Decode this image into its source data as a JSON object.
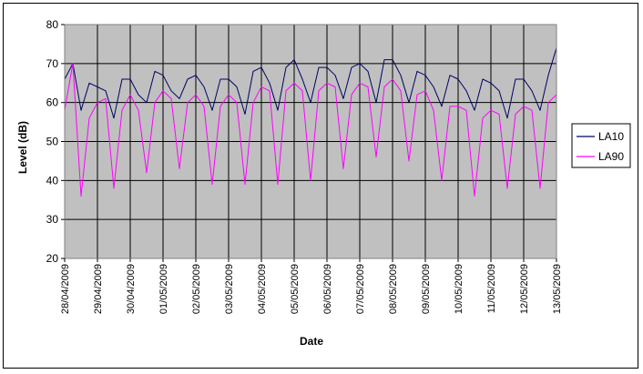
{
  "chart_data": {
    "type": "line",
    "title": "",
    "xlabel": "Date",
    "ylabel": "Level (dB)",
    "ylim": [
      20,
      80
    ],
    "yticks": [
      "20",
      "30",
      "40",
      "50",
      "60",
      "70",
      "80"
    ],
    "xlim": [
      "2009-04-28T00:00",
      "2009-05-13T00:00"
    ],
    "xtick_labels": [
      "28/04/2009",
      "29/04/2009",
      "30/04/2009",
      "01/05/2009",
      "02/05/2009",
      "03/05/2009",
      "04/05/2009",
      "05/05/2009",
      "06/05/2009",
      "07/05/2009",
      "08/05/2009",
      "09/05/2009",
      "10/05/2009",
      "11/05/2009",
      "12/05/2009",
      "13/05/2009"
    ],
    "grid": "horizontal and vertical",
    "legend": "right",
    "plot_background": "#c0c0c0",
    "series": [
      {
        "name": "LA10",
        "color": "#000066",
        "x": [
          "2009-04-28T00:00",
          "2009-04-28T06:00",
          "2009-04-28T12:00",
          "2009-04-28T18:00",
          "2009-04-29T00:00",
          "2009-04-29T06:00",
          "2009-04-29T12:00",
          "2009-04-29T18:00",
          "2009-04-30T00:00",
          "2009-04-30T06:00",
          "2009-04-30T12:00",
          "2009-04-30T18:00",
          "2009-05-01T00:00",
          "2009-05-01T06:00",
          "2009-05-01T12:00",
          "2009-05-01T18:00",
          "2009-05-02T00:00",
          "2009-05-02T06:00",
          "2009-05-02T12:00",
          "2009-05-02T18:00",
          "2009-05-03T00:00",
          "2009-05-03T06:00",
          "2009-05-03T12:00",
          "2009-05-03T18:00",
          "2009-05-04T00:00",
          "2009-05-04T06:00",
          "2009-05-04T12:00",
          "2009-05-04T18:00",
          "2009-05-05T00:00",
          "2009-05-05T06:00",
          "2009-05-05T12:00",
          "2009-05-05T18:00",
          "2009-05-06T00:00",
          "2009-05-06T06:00",
          "2009-05-06T12:00",
          "2009-05-06T18:00",
          "2009-05-07T00:00",
          "2009-05-07T06:00",
          "2009-05-07T12:00",
          "2009-05-07T18:00",
          "2009-05-08T00:00",
          "2009-05-08T06:00",
          "2009-05-08T12:00",
          "2009-05-08T18:00",
          "2009-05-09T00:00",
          "2009-05-09T06:00",
          "2009-05-09T12:00",
          "2009-05-09T18:00",
          "2009-05-10T00:00",
          "2009-05-10T06:00",
          "2009-05-10T12:00",
          "2009-05-10T18:00",
          "2009-05-11T00:00",
          "2009-05-11T06:00",
          "2009-05-11T12:00",
          "2009-05-11T18:00",
          "2009-05-12T00:00",
          "2009-05-12T06:00",
          "2009-05-12T12:00",
          "2009-05-12T18:00",
          "2009-05-13T00:00"
        ],
        "y": [
          66,
          70,
          58,
          65,
          64,
          63,
          56,
          66,
          66,
          62,
          60,
          68,
          67,
          63,
          61,
          66,
          67,
          64,
          58,
          66,
          66,
          64,
          57,
          68,
          69,
          65,
          58,
          69,
          71,
          66,
          60,
          69,
          69,
          67,
          61,
          69,
          70,
          68,
          60,
          71,
          71,
          67,
          60,
          68,
          67,
          64,
          59,
          67,
          66,
          63,
          58,
          66,
          65,
          63,
          56,
          66,
          66,
          63,
          58,
          67,
          74
        ]
      },
      {
        "name": "LA90",
        "color": "#ff00ff",
        "x": [
          "2009-04-28T00:00",
          "2009-04-28T06:00",
          "2009-04-28T12:00",
          "2009-04-28T18:00",
          "2009-04-29T00:00",
          "2009-04-29T06:00",
          "2009-04-29T12:00",
          "2009-04-29T18:00",
          "2009-04-30T00:00",
          "2009-04-30T06:00",
          "2009-04-30T12:00",
          "2009-04-30T18:00",
          "2009-05-01T00:00",
          "2009-05-01T06:00",
          "2009-05-01T12:00",
          "2009-05-01T18:00",
          "2009-05-02T00:00",
          "2009-05-02T06:00",
          "2009-05-02T12:00",
          "2009-05-02T18:00",
          "2009-05-03T00:00",
          "2009-05-03T06:00",
          "2009-05-03T12:00",
          "2009-05-03T18:00",
          "2009-05-04T00:00",
          "2009-05-04T06:00",
          "2009-05-04T12:00",
          "2009-05-04T18:00",
          "2009-05-05T00:00",
          "2009-05-05T06:00",
          "2009-05-05T12:00",
          "2009-05-05T18:00",
          "2009-05-06T00:00",
          "2009-05-06T06:00",
          "2009-05-06T12:00",
          "2009-05-06T18:00",
          "2009-05-07T00:00",
          "2009-05-07T06:00",
          "2009-05-07T12:00",
          "2009-05-07T18:00",
          "2009-05-08T00:00",
          "2009-05-08T06:00",
          "2009-05-08T12:00",
          "2009-05-08T18:00",
          "2009-05-09T00:00",
          "2009-05-09T06:00",
          "2009-05-09T12:00",
          "2009-05-09T18:00",
          "2009-05-10T00:00",
          "2009-05-10T06:00",
          "2009-05-10T12:00",
          "2009-05-10T18:00",
          "2009-05-11T00:00",
          "2009-05-11T06:00",
          "2009-05-11T12:00",
          "2009-05-11T18:00",
          "2009-05-12T00:00",
          "2009-05-12T06:00",
          "2009-05-12T12:00",
          "2009-05-12T18:00",
          "2009-05-13T00:00"
        ],
        "y": [
          58,
          70,
          36,
          56,
          60,
          61,
          38,
          58,
          62,
          58,
          42,
          60,
          63,
          61,
          43,
          60,
          62,
          59,
          39,
          59,
          62,
          60,
          39,
          60,
          64,
          63,
          39,
          63,
          65,
          63,
          40,
          63,
          65,
          64,
          43,
          62,
          65,
          64,
          46,
          64,
          66,
          63,
          45,
          62,
          63,
          58,
          40,
          59,
          59,
          58,
          36,
          56,
          58,
          57,
          38,
          57,
          59,
          58,
          38,
          60,
          62
        ]
      }
    ]
  }
}
